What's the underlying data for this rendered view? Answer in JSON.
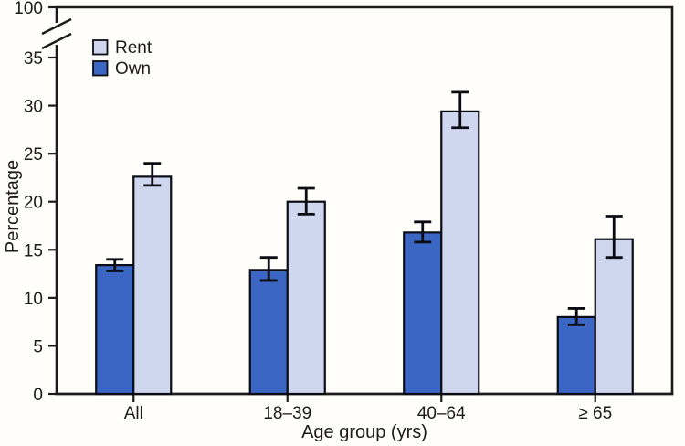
{
  "chart_data": {
    "type": "bar",
    "title": "",
    "xlabel": "Age group (yrs)",
    "ylabel": "Percentage",
    "categories": [
      "All",
      "18–39",
      "40–64",
      "≥ 65"
    ],
    "series": [
      {
        "name": "Own",
        "color": "#3c66c3",
        "values": [
          13.4,
          12.9,
          16.8,
          8.0
        ],
        "ci_low": [
          12.8,
          11.8,
          15.8,
          7.2
        ],
        "ci_high": [
          14.0,
          14.2,
          17.9,
          8.9
        ]
      },
      {
        "name": "Rent",
        "color": "#cfd7ef",
        "values": [
          22.6,
          20.0,
          29.4,
          16.1
        ],
        "ci_low": [
          21.7,
          18.7,
          27.7,
          14.2
        ],
        "ci_high": [
          24.0,
          21.4,
          31.4,
          18.5
        ]
      }
    ],
    "y_axis": {
      "ticks": [
        0,
        5,
        10,
        15,
        20,
        25,
        30,
        35
      ],
      "broken_top_tick": 100,
      "ylim": [
        0,
        35
      ],
      "axis_break": true
    },
    "legend": {
      "position": "top-left",
      "items": [
        {
          "label": "Rent",
          "color": "#cfd7ef"
        },
        {
          "label": "Own",
          "color": "#3c66c3"
        }
      ]
    },
    "grid": false,
    "error_bars": true,
    "colors": {
      "outline": "#0c0c14",
      "axis": "#1b1b1b",
      "background": "#fffefa"
    }
  }
}
